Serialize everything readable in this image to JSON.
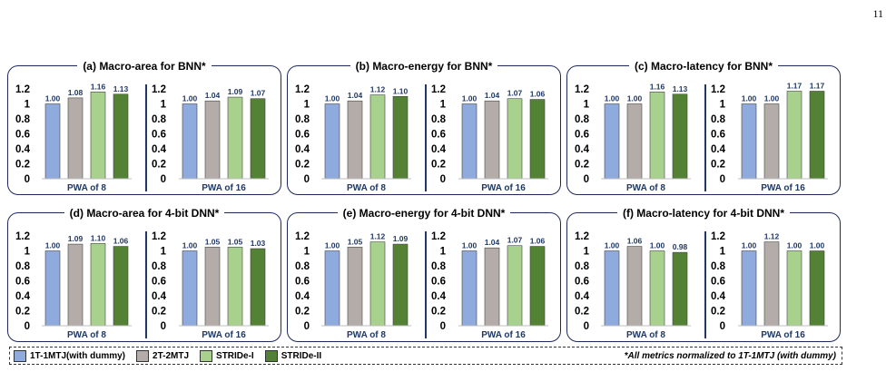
{
  "page_number": "11",
  "colors": {
    "1T-1MTJ(with dummy)": "#8faadc",
    "2T-2MTJ": "#b3aca8",
    "STRIDe-I": "#a9d18e",
    "STRIDe-II": "#548235",
    "divider": "#1f3864",
    "frame": "#1f2a5a"
  },
  "legend": {
    "items": [
      "1T-1MTJ(with dummy)",
      "2T-2MTJ",
      "STRIDe-I",
      "STRIDe-II"
    ],
    "note": "*All metrics normalized to 1T-1MTJ (with dummy)"
  },
  "chart_data": [
    {
      "type": "bar",
      "title": "(a) Macro-area for BNN*",
      "ylim": [
        0,
        1.2
      ],
      "yticks": [
        "0",
        "0.2",
        "0.4",
        "0.6",
        "0.8",
        "1",
        "1.2"
      ],
      "groups": [
        {
          "label": "PWA of 8",
          "values": [
            1.0,
            1.08,
            1.16,
            1.13
          ],
          "labels": [
            "1.00",
            "1.08",
            "1.16",
            "1.13"
          ]
        },
        {
          "label": "PWA of 16",
          "values": [
            1.0,
            1.04,
            1.09,
            1.07
          ],
          "labels": [
            "1.00",
            "1.04",
            "1.09",
            "1.07"
          ]
        }
      ]
    },
    {
      "type": "bar",
      "title": "(b) Macro-energy for BNN*",
      "ylim": [
        0,
        1.2
      ],
      "yticks": [
        "0",
        "0.2",
        "0.4",
        "0.6",
        "0.8",
        "1",
        "1.2"
      ],
      "groups": [
        {
          "label": "PWA of 8",
          "values": [
            1.0,
            1.04,
            1.12,
            1.1
          ],
          "labels": [
            "1.00",
            "1.04",
            "1.12",
            "1.10"
          ]
        },
        {
          "label": "PWA of 16",
          "values": [
            1.0,
            1.04,
            1.07,
            1.06
          ],
          "labels": [
            "1.00",
            "1.04",
            "1.07",
            "1.06"
          ]
        }
      ]
    },
    {
      "type": "bar",
      "title": "(c) Macro-latency for BNN*",
      "ylim": [
        0,
        1.2
      ],
      "yticks": [
        "0",
        "0.2",
        "0.4",
        "0.6",
        "0.8",
        "1",
        "1.2"
      ],
      "groups": [
        {
          "label": "PWA of 8",
          "values": [
            1.0,
            1.0,
            1.16,
            1.13
          ],
          "labels": [
            "1.00",
            "1.00",
            "1.16",
            "1.13"
          ]
        },
        {
          "label": "PWA of 16",
          "values": [
            1.0,
            1.0,
            1.17,
            1.17
          ],
          "labels": [
            "1.00",
            "1.00",
            "1.17",
            "1.17"
          ]
        }
      ]
    },
    {
      "type": "bar",
      "title": "(d) Macro-area for 4-bit DNN*",
      "ylim": [
        0,
        1.2
      ],
      "yticks": [
        "0",
        "0.2",
        "0.4",
        "0.6",
        "0.8",
        "1",
        "1.2"
      ],
      "groups": [
        {
          "label": "PWA of 8",
          "values": [
            1.0,
            1.09,
            1.1,
            1.06
          ],
          "labels": [
            "1.00",
            "1.09",
            "1.10",
            "1.06"
          ]
        },
        {
          "label": "PWA of 16",
          "values": [
            1.0,
            1.05,
            1.05,
            1.03
          ],
          "labels": [
            "1.00",
            "1.05",
            "1.05",
            "1.03"
          ]
        }
      ]
    },
    {
      "type": "bar",
      "title": "(e) Macro-energy for 4-bit DNN*",
      "ylim": [
        0,
        1.2
      ],
      "yticks": [
        "0",
        "0.2",
        "0.4",
        "0.6",
        "0.8",
        "1",
        "1.2"
      ],
      "groups": [
        {
          "label": "PWA of 8",
          "values": [
            1.0,
            1.05,
            1.12,
            1.09
          ],
          "labels": [
            "1.00",
            "1.05",
            "1.12",
            "1.09"
          ]
        },
        {
          "label": "PWA of 16",
          "values": [
            1.0,
            1.04,
            1.07,
            1.06
          ],
          "labels": [
            "1.00",
            "1.04",
            "1.07",
            "1.06"
          ]
        }
      ]
    },
    {
      "type": "bar",
      "title": "(f) Macro-latency for 4-bit DNN*",
      "ylim": [
        0,
        1.2
      ],
      "yticks": [
        "0",
        "0.2",
        "0.4",
        "0.6",
        "0.8",
        "1",
        "1.2"
      ],
      "groups": [
        {
          "label": "PWA of 8",
          "values": [
            1.0,
            1.06,
            1.0,
            0.98
          ],
          "labels": [
            "1.00",
            "1.06",
            "1.00",
            "0.98"
          ]
        },
        {
          "label": "PWA of 16",
          "values": [
            1.0,
            1.12,
            1.0,
            1.0
          ],
          "labels": [
            "1.00",
            "1.12",
            "1.00",
            "1.00"
          ]
        }
      ]
    }
  ]
}
